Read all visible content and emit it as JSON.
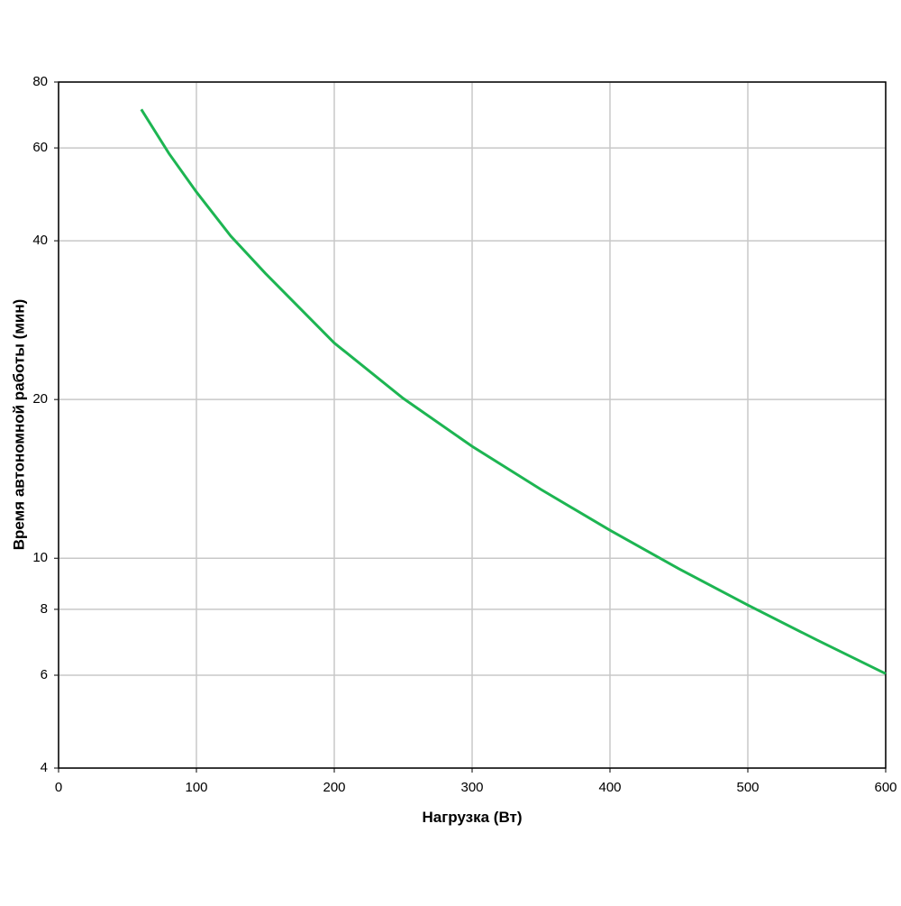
{
  "chart_data": {
    "type": "line",
    "log_y": true,
    "grid": true,
    "x_label": "Нагрузка (Вт)",
    "y_label": "Время автономной работы (мин)",
    "xlim": [
      0,
      600
    ],
    "xticks": [
      0,
      100,
      200,
      300,
      400,
      500,
      600
    ],
    "ylim": [
      4,
      80
    ],
    "yticks": [
      4,
      6,
      8,
      10,
      20,
      40,
      60,
      80
    ],
    "series": [
      {
        "color": "#1db552",
        "x": [
          60,
          80,
          100,
          125,
          150,
          200,
          250,
          300,
          350,
          400,
          450,
          500,
          550,
          600
        ],
        "values": [
          71,
          58.6,
          49.5,
          40.8,
          34.7,
          25.6,
          20.1,
          16.3,
          13.5,
          11.3,
          9.55,
          8.15,
          7.0,
          6.04
        ]
      }
    ]
  }
}
